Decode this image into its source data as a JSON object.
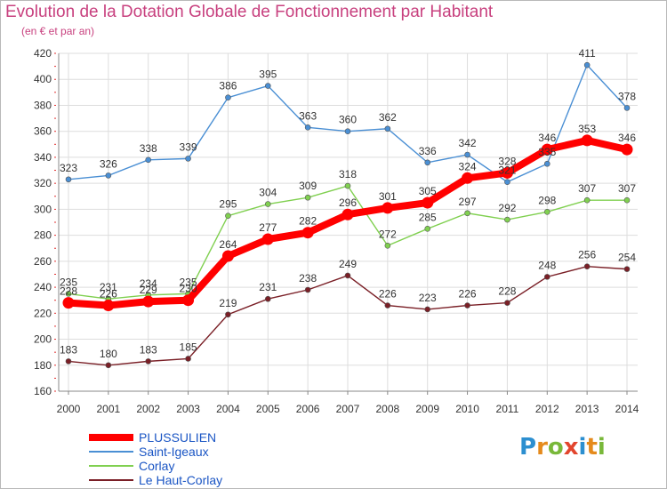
{
  "title": "Evolution de la Dotation Globale de Fonctionnement par Habitant",
  "subtitle": "(en € et par an)",
  "logo": {
    "text": "Proxiti",
    "letters": [
      "P",
      "r",
      "o",
      "x",
      "i",
      "t",
      "i"
    ]
  },
  "chart_data": {
    "type": "line",
    "x": [
      "2000",
      "2001",
      "2002",
      "2003",
      "2004",
      "2005",
      "2006",
      "2007",
      "2008",
      "2009",
      "2010",
      "2011",
      "2012",
      "2013",
      "2014"
    ],
    "ylim": [
      160,
      420
    ],
    "yticks": [
      160,
      180,
      200,
      220,
      240,
      260,
      280,
      300,
      320,
      340,
      360,
      380,
      400,
      420
    ],
    "grid": true,
    "legend_position": "bottom-left",
    "series": [
      {
        "name": "PLUSSULIEN",
        "color": "#ff0000",
        "emphasis": true,
        "values": [
          228,
          226,
          229,
          230,
          264,
          277,
          282,
          296,
          301,
          305,
          324,
          328,
          346,
          353,
          346
        ]
      },
      {
        "name": "Saint-Igeaux",
        "color": "#4a8fd4",
        "emphasis": false,
        "values": [
          323,
          326,
          338,
          339,
          386,
          395,
          363,
          360,
          362,
          336,
          342,
          321,
          335,
          411,
          378
        ]
      },
      {
        "name": "Corlay",
        "color": "#80d050",
        "emphasis": false,
        "values": [
          235,
          231,
          234,
          235,
          295,
          304,
          309,
          318,
          272,
          285,
          297,
          292,
          298,
          307,
          307
        ]
      },
      {
        "name": "Le Haut-Corlay",
        "color": "#7a1f26",
        "emphasis": false,
        "values": [
          183,
          180,
          183,
          185,
          219,
          231,
          238,
          249,
          226,
          223,
          226,
          228,
          248,
          256,
          254
        ]
      }
    ]
  }
}
